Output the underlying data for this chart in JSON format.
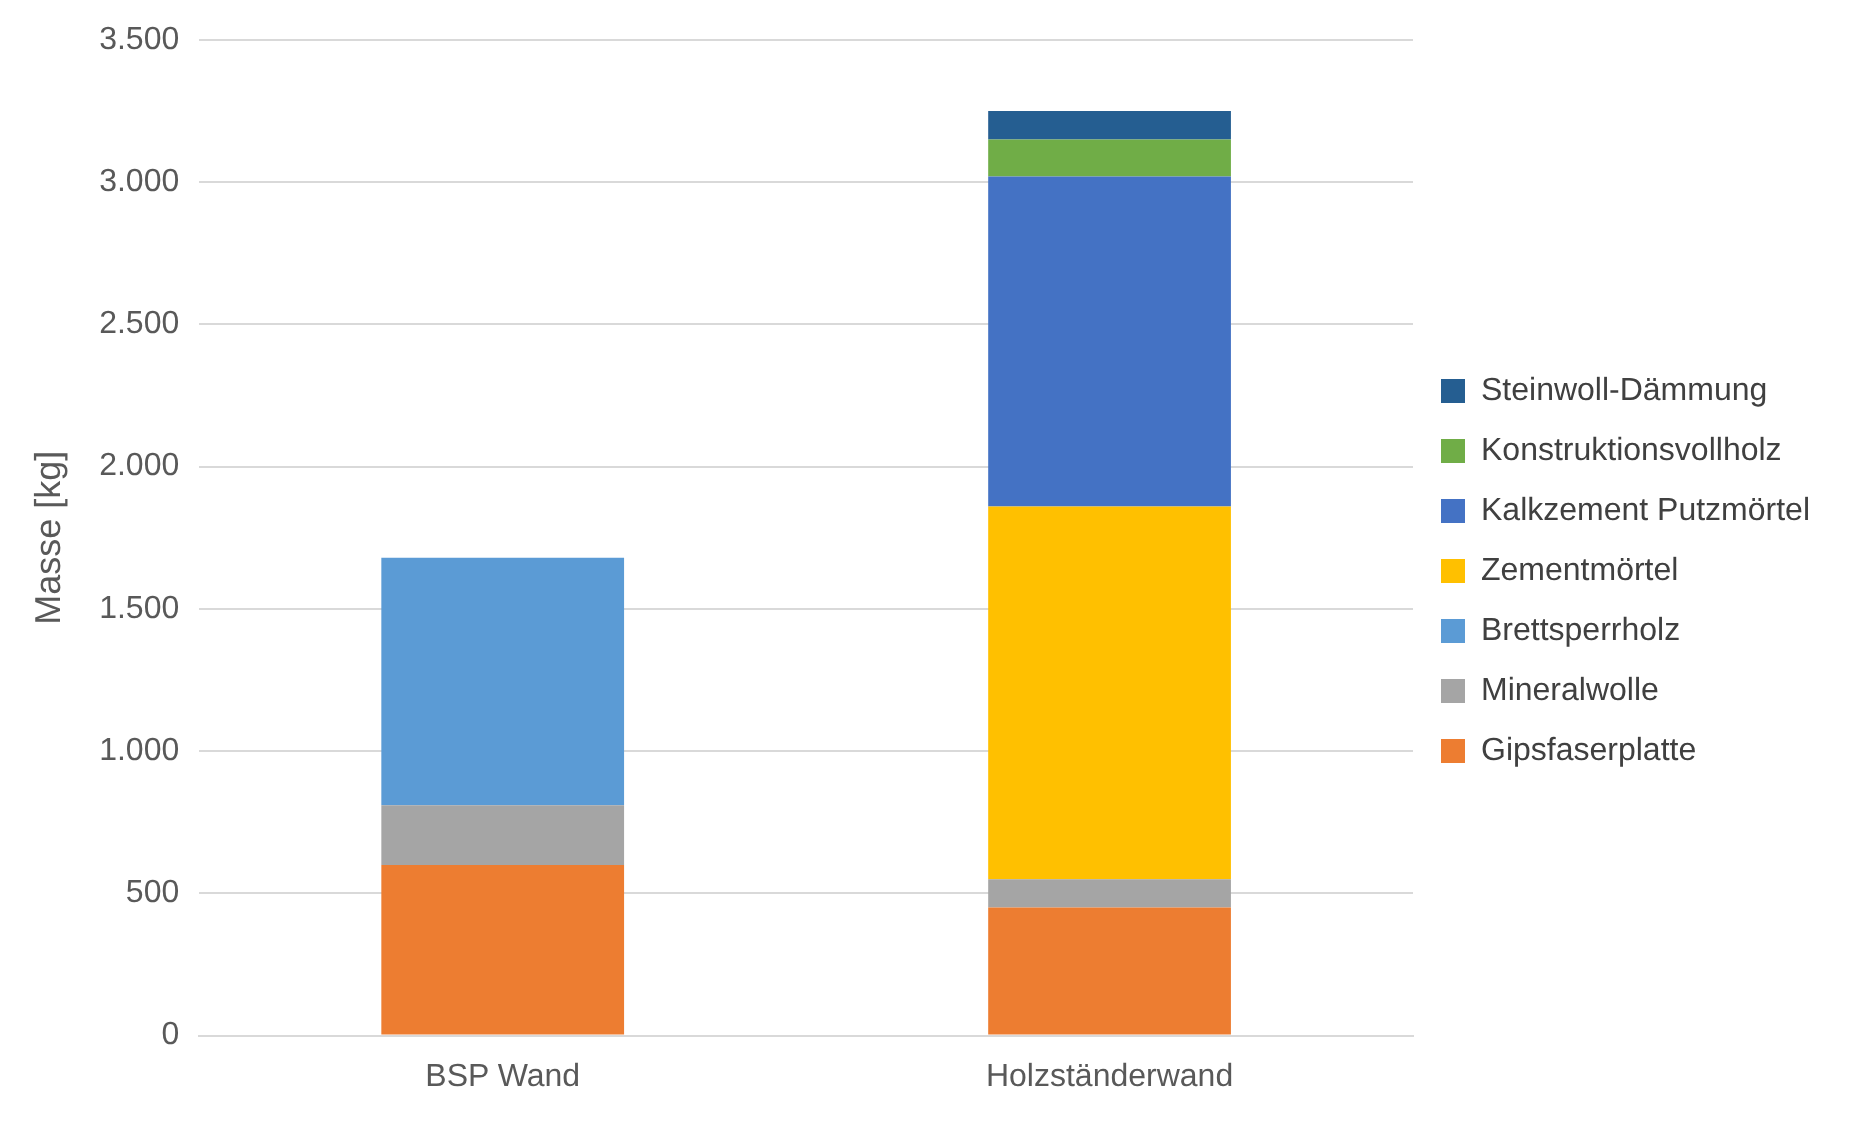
{
  "chart_data": {
    "type": "bar",
    "ylabel": "Masse [kg]",
    "categories": [
      "BSP Wand",
      "Holzständerwand"
    ],
    "stacked": true,
    "series": [
      {
        "name": "Gipsfaserplatte",
        "color": "#ed7d31",
        "values": [
          600,
          450
        ]
      },
      {
        "name": "Mineralwolle",
        "color": "#a5a5a5",
        "values": [
          210,
          100
        ]
      },
      {
        "name": "Brettsperrholz",
        "color": "#5b9bd5",
        "values": [
          870,
          null
        ]
      },
      {
        "name": "Zementmörtel",
        "color": "#ffc000",
        "values": [
          null,
          1310
        ]
      },
      {
        "name": "Kalkzement Putzmörtel",
        "color": "#4472c4",
        "values": [
          null,
          1160
        ]
      },
      {
        "name": "Konstruktionsvollholz",
        "color": "#70ad47",
        "values": [
          null,
          130
        ]
      },
      {
        "name": "Steinwoll-Dämmung",
        "color": "#255e91",
        "values": [
          null,
          100
        ]
      }
    ],
    "ylim": [
      0,
      3500
    ],
    "yticks": [
      {
        "value": 0,
        "label": "0"
      },
      {
        "value": 500,
        "label": "500"
      },
      {
        "value": 1000,
        "label": "1.000"
      },
      {
        "value": 1500,
        "label": "1.500"
      },
      {
        "value": 2000,
        "label": "2.000"
      },
      {
        "value": 2500,
        "label": "2.500"
      },
      {
        "value": 3000,
        "label": "3.000"
      },
      {
        "value": 3500,
        "label": "3.500"
      }
    ],
    "grid": "y",
    "legend": "right"
  }
}
